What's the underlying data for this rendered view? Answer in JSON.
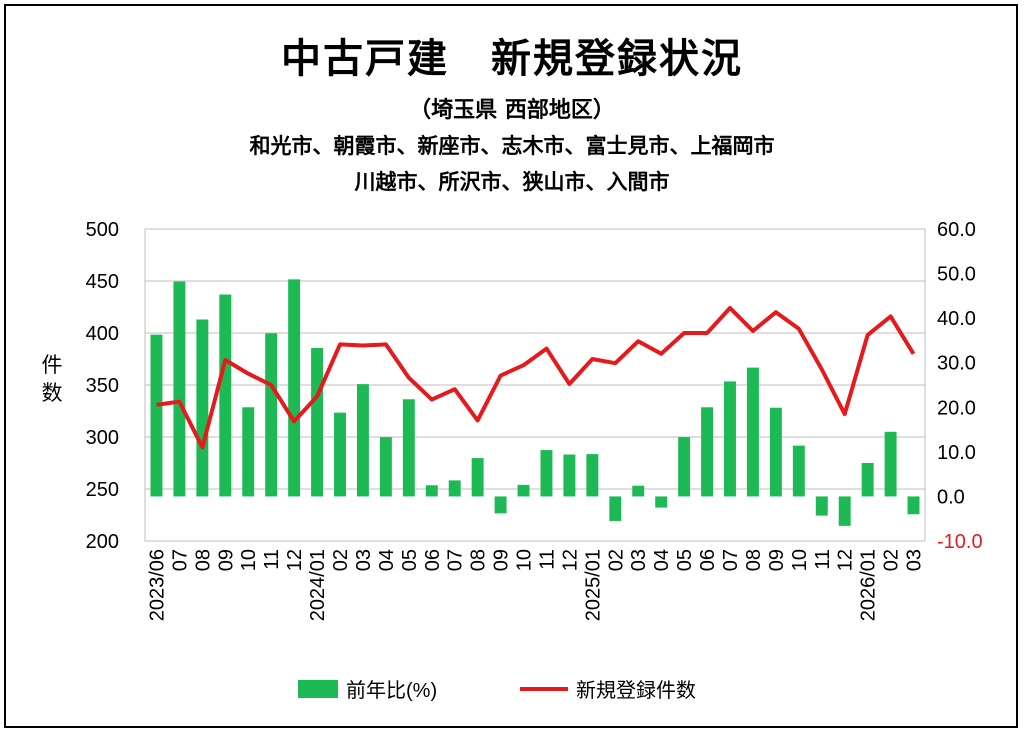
{
  "title": "中古戸建　新規登録状況",
  "subtitle": "（埼玉県 西部地区）",
  "cities_line1": "和光市、朝霞市、新座市、志木市、富士見市、上福岡市",
  "cities_line2": "川越市、所沢市、狭山市、入間市",
  "colors": {
    "bar": "#1DB954",
    "line": "#E41A1C",
    "negative_tick": "#E41A1C"
  },
  "chart_data": {
    "type": "bar+line",
    "categories": [
      "2023/06",
      "07",
      "08",
      "09",
      "10",
      "11",
      "12",
      "2024/01",
      "02",
      "03",
      "04",
      "05",
      "06",
      "07",
      "08",
      "09",
      "10",
      "11",
      "12",
      "2025/01",
      "02",
      "03",
      "04",
      "05",
      "06",
      "07",
      "08",
      "09",
      "10",
      "11",
      "12",
      "2026/01",
      "02",
      "03"
    ],
    "ylabel": "件\n数",
    "left_axis": {
      "min": 200,
      "max": 500,
      "step": 50,
      "ticks": [
        "200",
        "250",
        "300",
        "350",
        "400",
        "450",
        "500"
      ]
    },
    "right_axis": {
      "min": -10,
      "max": 60,
      "step": 10,
      "ticks": [
        "-10.0",
        "0.0",
        "10.0",
        "20.0",
        "30.0",
        "40.0",
        "50.0",
        "60.0"
      ]
    },
    "grid": true,
    "legend_position": "bottom",
    "series": [
      {
        "name": "前年比(%)",
        "type": "bar",
        "axis": "right",
        "values": [
          36.3,
          48.2,
          39.7,
          45.3,
          20.0,
          36.6,
          48.7,
          33.3,
          18.8,
          25.2,
          13.3,
          21.8,
          2.5,
          3.6,
          8.6,
          -3.8,
          2.6,
          10.4,
          9.4,
          9.5,
          -5.5,
          2.4,
          -2.5,
          13.3,
          20.0,
          25.8,
          28.9,
          19.9,
          11.4,
          -4.3,
          -6.6,
          7.5,
          14.5,
          -4.0
        ]
      },
      {
        "name": "新規登録件数",
        "type": "line",
        "axis": "left",
        "values": [
          331,
          334,
          290,
          374,
          361,
          350,
          315,
          339,
          389,
          388,
          389,
          357,
          336,
          346,
          316,
          359,
          369,
          385,
          351,
          375,
          371,
          392,
          380,
          400,
          400,
          424,
          402,
          420,
          404,
          365,
          322,
          398,
          416,
          380
        ]
      }
    ]
  }
}
